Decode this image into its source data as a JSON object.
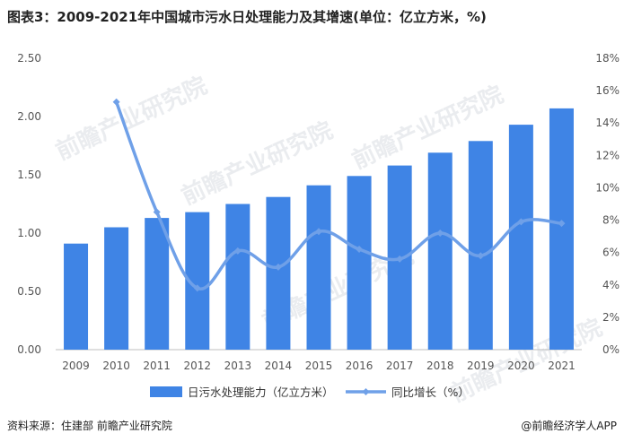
{
  "title": "图表3：2009-2021年中国城市污水日处理能力及其增速(单位：亿立方米，%)",
  "source": "资料来源：住建部 前瞻产业研究院",
  "brand": "@前瞻经济学人APP",
  "watermark": "前瞻产业研究院",
  "colors": {
    "bar": "#3f84e5",
    "line": "#6fa0e8",
    "axis_text": "#555555"
  },
  "chart_data": {
    "type": "bar",
    "categories": [
      "2009",
      "2010",
      "2011",
      "2012",
      "2013",
      "2014",
      "2015",
      "2016",
      "2017",
      "2018",
      "2019",
      "2020",
      "2021"
    ],
    "series": [
      {
        "name": "日污水处理能力（亿立方米）",
        "type": "bar",
        "axis": "left",
        "values": [
          0.91,
          1.05,
          1.13,
          1.18,
          1.25,
          1.31,
          1.41,
          1.49,
          1.58,
          1.69,
          1.79,
          1.93,
          2.07
        ]
      },
      {
        "name": "同比增长（%）",
        "type": "line",
        "axis": "right",
        "values": [
          null,
          15.3,
          8.5,
          3.8,
          6.1,
          5.1,
          7.3,
          6.2,
          5.6,
          7.2,
          5.8,
          7.9,
          7.8
        ]
      }
    ],
    "y_left": {
      "ylim": [
        0,
        2.5
      ],
      "ticks": [
        "0.00",
        "0.50",
        "1.00",
        "1.50",
        "2.00",
        "2.50"
      ]
    },
    "y_right": {
      "ylim": [
        0,
        18
      ],
      "ticks": [
        "0%",
        "2%",
        "4%",
        "6%",
        "8%",
        "10%",
        "12%",
        "14%",
        "16%",
        "18%"
      ]
    },
    "legend_position": "bottom",
    "grid": false
  }
}
